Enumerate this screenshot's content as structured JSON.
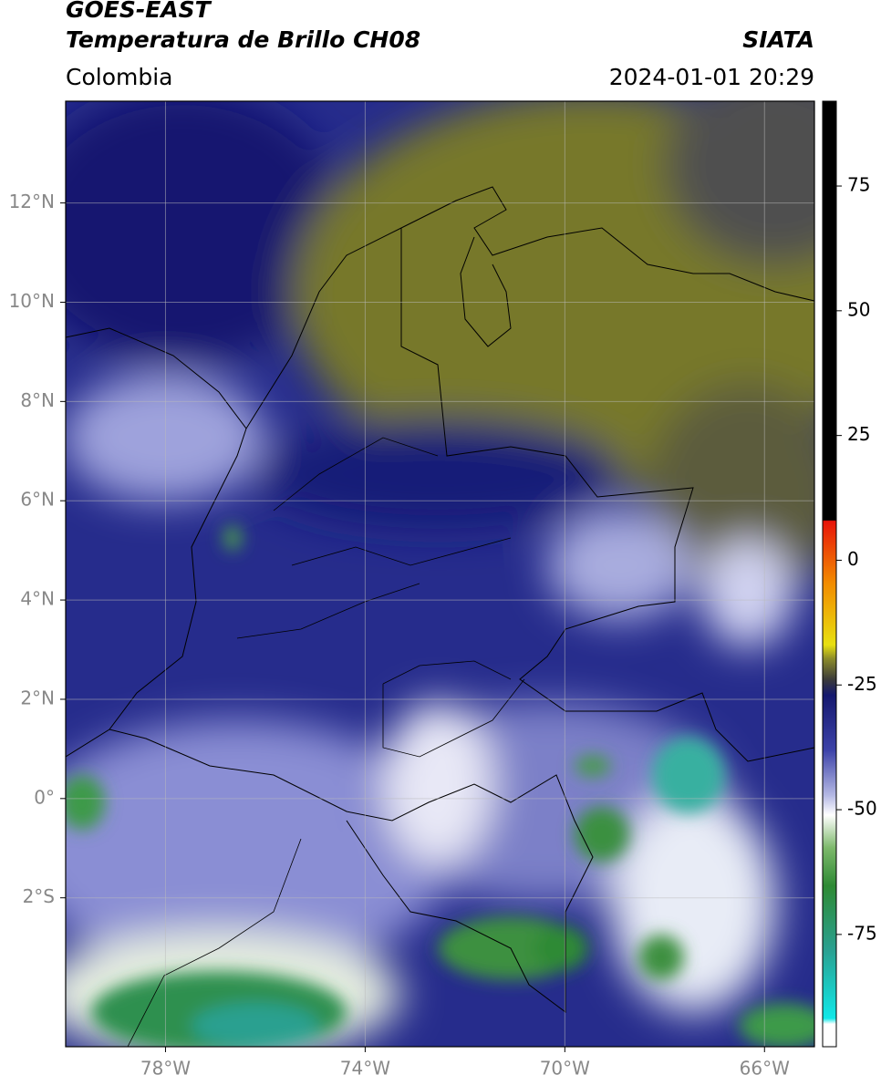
{
  "chart_data": {
    "type": "map",
    "title": "GOES-EAST",
    "subtitle": "Temperatura de Brillo CH08",
    "region": "Colombia",
    "source": "SIATA",
    "datetime": "2024-01-01 20:29",
    "xlim": [
      -80,
      -65
    ],
    "ylim": [
      -5,
      14.05
    ],
    "xticks": [
      {
        "value": -78,
        "label": "78°W"
      },
      {
        "value": -74,
        "label": "74°W"
      },
      {
        "value": -70,
        "label": "70°W"
      },
      {
        "value": -66,
        "label": "66°W"
      }
    ],
    "yticks": [
      {
        "value": 12,
        "label": "12°N"
      },
      {
        "value": 10,
        "label": "10°N"
      },
      {
        "value": 8,
        "label": "8°N"
      },
      {
        "value": 6,
        "label": "6°N"
      },
      {
        "value": 4,
        "label": "4°N"
      },
      {
        "value": 2,
        "label": "2°N"
      },
      {
        "value": 0,
        "label": "0°"
      },
      {
        "value": -2,
        "label": "2°S"
      }
    ],
    "grid": true,
    "colorbar": {
      "lim": [
        -97.5,
        92
      ],
      "ticks": [
        75,
        50,
        25,
        0,
        -25,
        -50,
        -75
      ]
    }
  }
}
